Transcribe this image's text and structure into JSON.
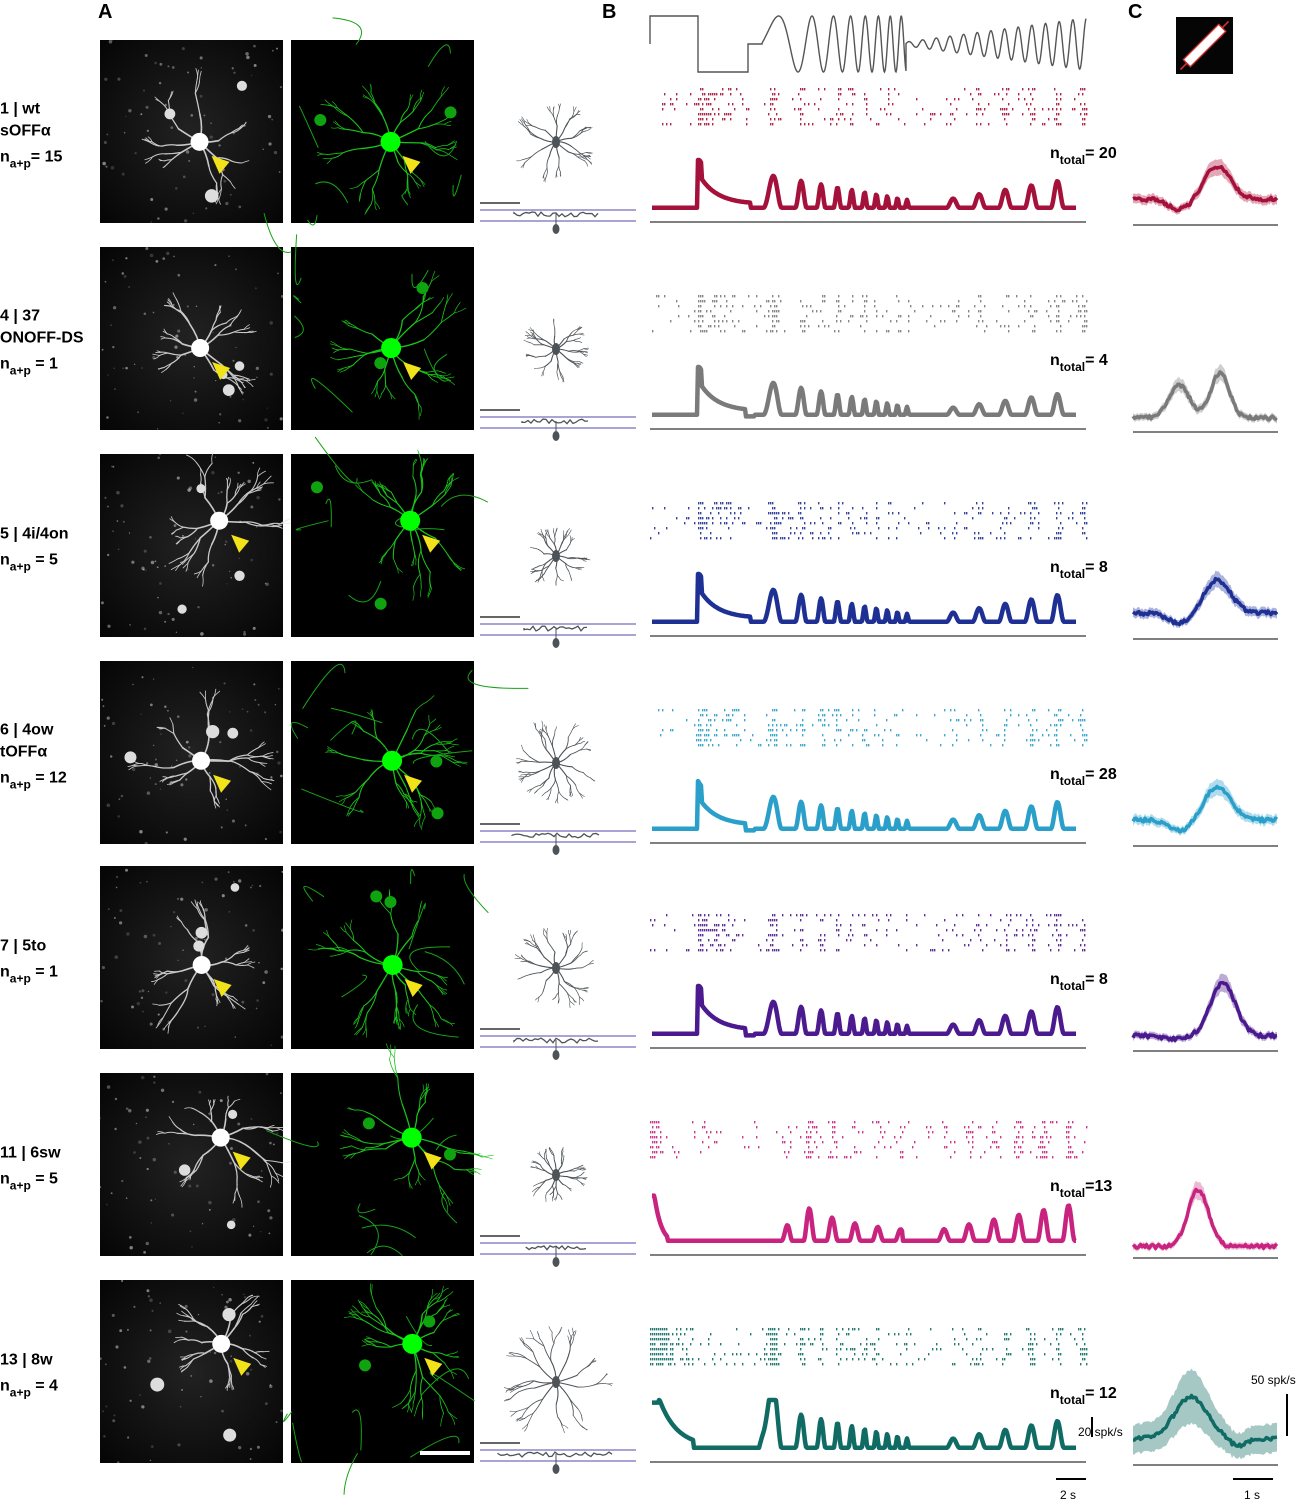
{
  "panels": {
    "a": "A",
    "b": "B",
    "c": "C"
  },
  "rows": [
    {
      "id": "row1",
      "name_lines": [
        "1 | wt",
        "sOFFα"
      ],
      "n_ap": "= 15",
      "ntotal": "= 20",
      "color": "#a4113a",
      "band": "#d98ba0",
      "resp": "s",
      "sizeR": 42,
      "rasterSeed": 11
    },
    {
      "id": "row4",
      "name_lines": [
        "4 | 37",
        "ONOFF-DS"
      ],
      "n_ap": " = 1",
      "ntotal": "= 4",
      "color": "#7a7a7a",
      "band": "#bdbdbd",
      "resp": "two",
      "sizeR": 34,
      "rasterSeed": 23
    },
    {
      "id": "row5",
      "name_lines": [
        "5 | 4i/4on"
      ],
      "n_ap": " = 5",
      "ntotal": "= 8",
      "color": "#1f3095",
      "band": "#8f9ad0",
      "resp": "s",
      "sizeR": 32,
      "rasterSeed": 37
    },
    {
      "id": "row6",
      "name_lines": [
        "6 | 4ow",
        "tOFFα"
      ],
      "n_ap": " = 12",
      "ntotal": "= 28",
      "color": "#2a9fc9",
      "band": "#94cfe6",
      "resp": "s2",
      "sizeR": 44,
      "rasterSeed": 41
    },
    {
      "id": "row7",
      "name_lines": [
        "7 | 5to"
      ],
      "n_ap": " = 1",
      "ntotal": "= 8",
      "color": "#4b1a8f",
      "band": "#a58dc7",
      "resp": "s3",
      "sizeR": 42,
      "rasterSeed": 53
    },
    {
      "id": "row11",
      "name_lines": [
        "11 | 6sw"
      ],
      "n_ap": " = 5",
      "ntotal": "=13",
      "color": "#c8237f",
      "band": "#e6a0c7",
      "resp": "t",
      "sizeR": 30,
      "rasterSeed": 67
    },
    {
      "id": "row13",
      "name_lines": [
        "13 | 8w"
      ],
      "n_ap": " = 4",
      "ntotal": "= 12",
      "color": "#0f6b63",
      "band": "#87b5b1",
      "resp": "w",
      "sizeR": 58,
      "rasterSeed": 79
    }
  ],
  "n_label": {
    "n": "n",
    "ap_sub": "a+p",
    "total_sub": "total"
  },
  "scalebars": {
    "chirp_amp": "20 spk/s",
    "chirp_time": "2 s",
    "bar_amp": "50 spk/s",
    "bar_time": "1 s"
  },
  "colors": {
    "gcamp": "#00ff00",
    "arrow": "#f2e21a",
    "ipl": "#8d86c9",
    "morph": "#4d5357"
  }
}
